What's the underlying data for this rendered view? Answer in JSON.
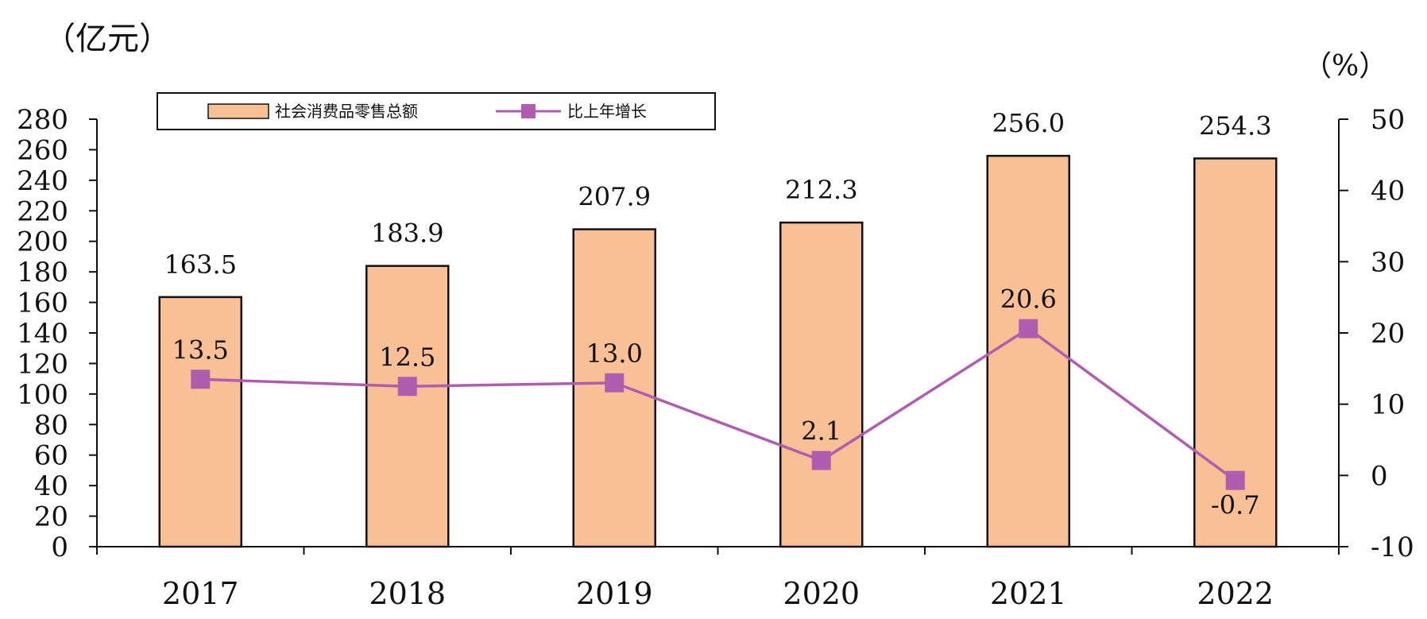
{
  "chart_data": {
    "type": "bar+line",
    "categories": [
      "2017",
      "2018",
      "2019",
      "2020",
      "2021",
      "2022"
    ],
    "series": [
      {
        "name": "社会消费品零售总额",
        "type": "bar",
        "axis": "left",
        "values": [
          163.5,
          183.9,
          207.9,
          212.3,
          256.0,
          254.3
        ],
        "labels": [
          "163.5",
          "183.9",
          "207.9",
          "212.3",
          "256.0",
          "254.3"
        ],
        "color": "#F9BF95"
      },
      {
        "name": "比上年增长",
        "type": "line",
        "axis": "right",
        "values": [
          13.5,
          12.5,
          13.0,
          2.1,
          20.6,
          -0.7
        ],
        "labels": [
          "13.5",
          "12.5",
          "13.0",
          "2.1",
          "20.6",
          "-0.7"
        ],
        "color": "#B05DB0"
      }
    ],
    "left_axis": {
      "unit": "（亿元）",
      "min": 0,
      "max": 280,
      "step": 20,
      "ticks": [
        "0",
        "20",
        "40",
        "60",
        "80",
        "100",
        "120",
        "140",
        "160",
        "180",
        "200",
        "220",
        "240",
        "260",
        "280"
      ]
    },
    "right_axis": {
      "unit": "（%）",
      "min": -10,
      "max": 50,
      "step": 10,
      "ticks": [
        "-10",
        "0",
        "10",
        "20",
        "30",
        "40",
        "50"
      ]
    },
    "legend_position": "top-left",
    "grid": false
  }
}
